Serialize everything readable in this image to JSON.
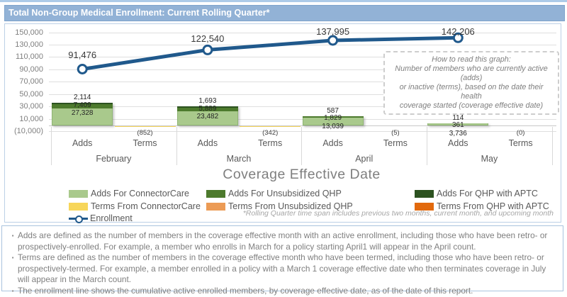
{
  "title": "Total Non-Group Medical Enrollment: Current Rolling Quarter*",
  "chart_data": {
    "type": "combo_stacked_bar_line",
    "months": [
      "February",
      "March",
      "April",
      "May"
    ],
    "sub_categories": [
      "Adds",
      "Terms"
    ],
    "xlabel": "Coverage Effective Date",
    "ylim": [
      -10000,
      150000
    ],
    "grid": true,
    "y_tick_labels": [
      "150,000",
      "130,000",
      "110,000",
      "90,000",
      "70,000",
      "50,000",
      "30,000",
      "10,000",
      "(10,000)"
    ],
    "bar_series": [
      {
        "name": "Adds For ConnectorCare",
        "color": "#A9C98C",
        "edge": "#8FB573",
        "values": [
          27328,
          23482,
          13039,
          3736
        ],
        "labels": [
          "27,328",
          "23,482",
          "13,039",
          "3,736"
        ]
      },
      {
        "name": "Adds For Unsubsidized QHP",
        "color": "#4D7A2D",
        "edge": "#3E6524",
        "values": [
          7409,
          5889,
          1829,
          361
        ],
        "labels": [
          "7,409",
          "5,889",
          "1,829",
          "361"
        ]
      },
      {
        "name": "Adds For QHP with APTC",
        "color": "#2C5220",
        "edge": "#24441A",
        "values": [
          2114,
          1693,
          587,
          114
        ],
        "labels": [
          "2,114",
          "1,693",
          "587",
          "114"
        ]
      }
    ],
    "terms": {
      "name": "Terms (total, shown as negative)",
      "values": [
        852,
        342,
        5,
        0
      ],
      "labels": [
        "(852)",
        "(342)",
        "(5)",
        "(0)"
      ]
    },
    "enrollment_line": {
      "name": "Enrollment",
      "color": "#20598C",
      "values": [
        91476,
        122540,
        137995,
        142206
      ],
      "labels": [
        "91,476",
        "122,540",
        "137,995",
        "142,206"
      ]
    },
    "legend": [
      {
        "label": "Adds For ConnectorCare",
        "color": "#A9C98C",
        "type": "box"
      },
      {
        "label": "Adds For Unsubsidized QHP",
        "color": "#4D7A2D",
        "type": "box"
      },
      {
        "label": "Adds For QHP with APTC",
        "color": "#2C5220",
        "type": "box"
      },
      {
        "label": "Terms From ConnectorCare",
        "color": "#F7D65A",
        "type": "box"
      },
      {
        "label": "Terms From Unsubsidized QHP",
        "color": "#EC9B55",
        "type": "box"
      },
      {
        "label": "Terms From QHP with APTC",
        "color": "#E2690D",
        "type": "box"
      },
      {
        "label": "Enrollment",
        "color": "#20598C",
        "type": "line"
      }
    ],
    "note_box": [
      "How to read this graph:",
      "Number of members who are currently active (adds)",
      "or inactive (terms), based on the date their health",
      "coverage started (coverage effective date)"
    ],
    "footnote": "*Rolling Quarter time span includes previous two months, current month, and upcoming month"
  },
  "footer": {
    "bullets": [
      "Adds are defined as the number of members in the coverage effective month with an active enrollment, including those who have been retro- or prospectively-enrolled.  For example, a member who enrolls in March for a policy starting April1 will appear in the April count.",
      "Terms are defined as the number of members in the coverage effective month who have been termed, including those who have been retro- or prospectively-termed.  For example, a member enrolled in a policy with a March 1 coverage effective date who then terminates coverage in July will appear in the March count.",
      "The enrollment line shows the cumulative active enrolled members, by coverage effective date, as of the date of this report."
    ]
  }
}
